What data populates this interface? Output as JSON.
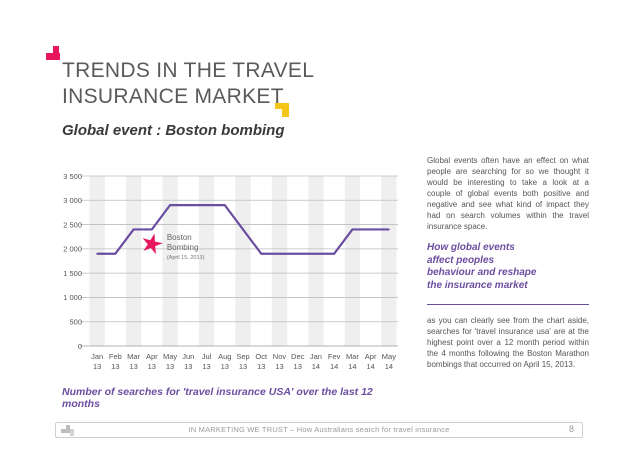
{
  "page": {
    "title": "TRENDS IN THE TRAVEL INSURANCE MARKET",
    "subtitle": "Global event : Boston bombing",
    "caption": "Number of searches for 'travel insurance USA' over the last 12 months",
    "sidebar": {
      "intro": "Global events often have an effect on what people are searching for so we thought it would be interesting to take a look at a couple of global events both positive and negative and see what kind of impact they had on search volumes within the travel insurance space.",
      "highlight": [
        "How global events",
        "affect peoples",
        "behaviour and reshape",
        "the insurance market"
      ],
      "body": "as you can clearly see from the chart aside, searches for 'travel insurance usa' are at the highest point over a 12 month period within the 4 months following the Boston Marathon bombings that occurred on April 15, 2013."
    },
    "footer": {
      "text": "IN MARKETING WE TRUST – How Australians search for travel insurance",
      "page_number": "8"
    },
    "colors": {
      "brand_accent": "#e8175d",
      "brand_yellow": "#f5c518",
      "series": "#6b4ea0",
      "star": "#e8175d"
    }
  },
  "chart_data": {
    "type": "line",
    "categories": [
      "Jan 13",
      "Feb 13",
      "Mar 13",
      "Apr 13",
      "May 13",
      "Jun 13",
      "Jul 13",
      "Aug 13",
      "Sep 13",
      "Oct 13",
      "Nov 13",
      "Dec 13",
      "Jan 14",
      "Fev 14",
      "Mar 14",
      "Apr 14",
      "May 14"
    ],
    "tick_labels": [
      [
        "Jan",
        "13"
      ],
      [
        "Feb",
        "13"
      ],
      [
        "Mar",
        "13"
      ],
      [
        "Apr",
        "13"
      ],
      [
        "May",
        "13"
      ],
      [
        "Jun",
        "13"
      ],
      [
        "Jul",
        "13"
      ],
      [
        "Aug",
        "13"
      ],
      [
        "Sep",
        "13"
      ],
      [
        "Oct",
        "13"
      ],
      [
        "Nov",
        "13"
      ],
      [
        "Dec",
        "13"
      ],
      [
        "Jan",
        "14"
      ],
      [
        "Fev",
        "14"
      ],
      [
        "Mar",
        "14"
      ],
      [
        "Apr",
        "14"
      ],
      [
        "May",
        "14"
      ]
    ],
    "series": [
      {
        "values": [
          1900,
          1900,
          2400,
          2400,
          2900,
          2900,
          2900,
          2900,
          2400,
          1900,
          1900,
          1900,
          1900,
          1900,
          2400,
          2400,
          2400
        ]
      }
    ],
    "ylim": [
      0,
      3500
    ],
    "yticks": [
      0,
      500,
      1000,
      1500,
      2000,
      2500,
      3000,
      3500
    ],
    "ytick_labels": [
      "0",
      "1 000",
      "1 500",
      "2 000",
      "2 500",
      "3 000",
      "3 500"
    ],
    "ytick_labels_full": [
      "0",
      "500",
      "1 000",
      "1 500",
      "2 000",
      "2 500",
      "3 000",
      "3 500"
    ],
    "grid": true,
    "alternating_bands": true,
    "annotation": {
      "category_index": 3,
      "value": 2100,
      "label_lines": [
        "Boston",
        "Bombing"
      ],
      "date": "(April 15, 2013)"
    }
  }
}
